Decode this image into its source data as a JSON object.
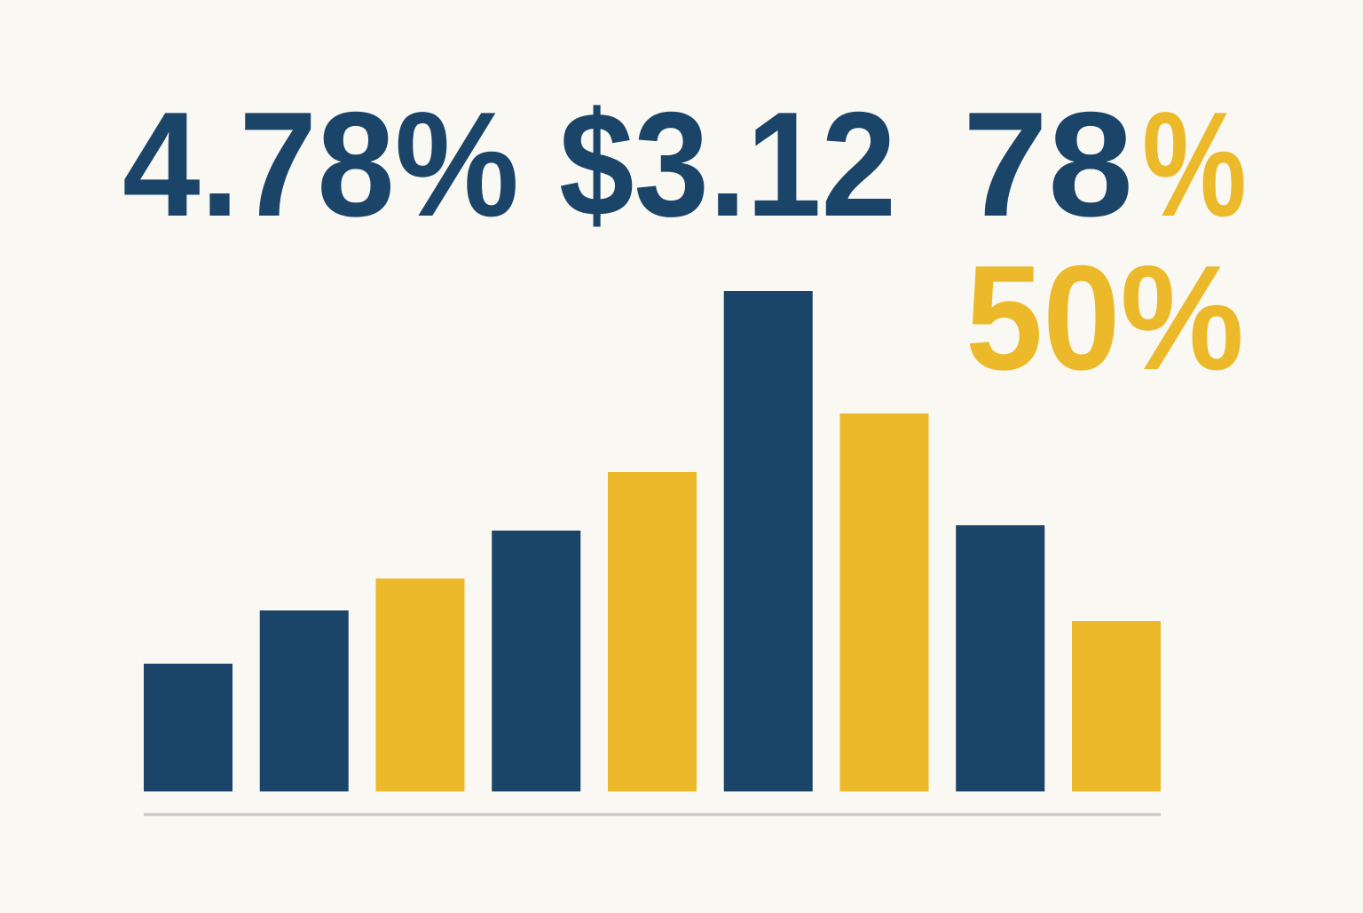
{
  "headline": {
    "stat_1": "4.78%",
    "stat_2": "$3.12",
    "stat_3_number": "78",
    "stat_3_unit": "%",
    "stat_4": "50%"
  },
  "chart_data": {
    "type": "bar",
    "values": [
      24,
      34,
      40,
      49,
      60,
      94,
      71,
      50,
      32
    ],
    "colors": [
      "#1b4469",
      "#1b4469",
      "#ebb92a",
      "#1b4469",
      "#ebb92a",
      "#1b4469",
      "#ebb92a",
      "#1b4469",
      "#ebb92a"
    ],
    "ylim": [
      0,
      100
    ]
  }
}
